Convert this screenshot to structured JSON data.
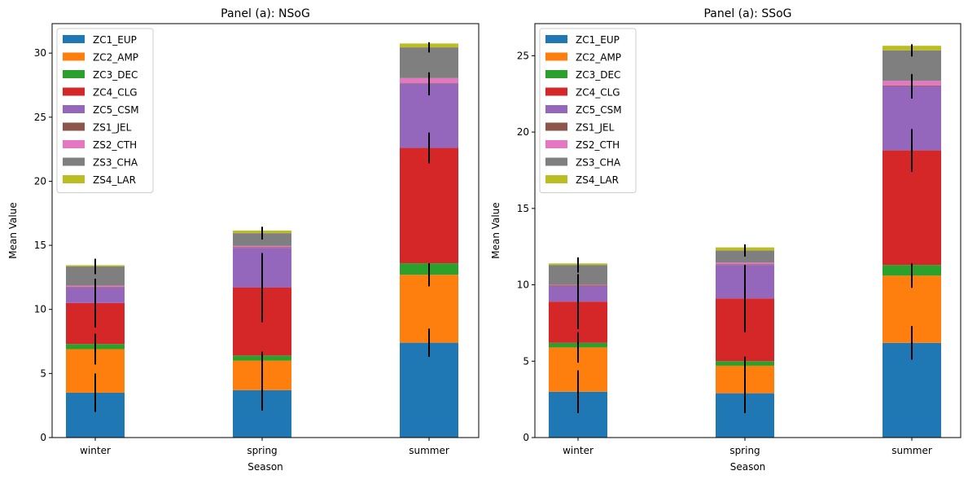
{
  "colors": {
    "ZC1_EUP": "#1f77b4",
    "ZC2_AMP": "#ff7f0e",
    "ZC3_DEC": "#2ca02c",
    "ZC4_CLG": "#d62728",
    "ZC5_CSM": "#9467bd",
    "ZS1_JEL": "#8c564b",
    "ZS2_CTH": "#e377c2",
    "ZS3_CHA": "#7f7f7f",
    "ZS4_LAR": "#bcbd22",
    "errorbar": "#000000"
  },
  "chart_data": [
    {
      "type": "bar",
      "stacked": true,
      "title": "Panel (a): NSoG",
      "xlabel": "Season",
      "ylabel": "Mean Value",
      "ylim": [
        0,
        32.3
      ],
      "yticks": [
        0,
        5,
        10,
        15,
        20,
        25,
        30
      ],
      "categories": [
        "winter",
        "spring",
        "summer"
      ],
      "legend": "top-left",
      "series": [
        {
          "name": "ZC1_EUP",
          "values": [
            3.5,
            3.7,
            7.4
          ],
          "err": [
            1.5,
            1.6,
            1.1
          ]
        },
        {
          "name": "ZC2_AMP",
          "values": [
            3.4,
            2.3,
            5.3
          ],
          "err": [
            1.2,
            0.7,
            0.9
          ]
        },
        {
          "name": "ZC3_DEC",
          "values": [
            0.4,
            0.4,
            0.9
          ],
          "err": [
            0,
            0,
            0
          ]
        },
        {
          "name": "ZC4_CLG",
          "values": [
            3.2,
            5.3,
            9.0
          ],
          "err": [
            1.9,
            2.7,
            1.2
          ]
        },
        {
          "name": "ZC5_CSM",
          "values": [
            1.2,
            3.1,
            5.0
          ],
          "err": [
            0,
            0,
            0.9
          ]
        },
        {
          "name": "ZS1_JEL",
          "values": [
            0.05,
            0.05,
            0.05
          ],
          "err": [
            0,
            0,
            0
          ]
        },
        {
          "name": "ZS2_CTH",
          "values": [
            0.1,
            0.1,
            0.4
          ],
          "err": [
            0,
            0,
            0
          ]
        },
        {
          "name": "ZS3_CHA",
          "values": [
            1.5,
            1.0,
            2.4
          ],
          "err": [
            0.6,
            0.5,
            0.4
          ]
        },
        {
          "name": "ZS4_LAR",
          "values": [
            0.1,
            0.2,
            0.3
          ],
          "err": [
            0,
            0,
            0
          ]
        }
      ]
    },
    {
      "type": "bar",
      "stacked": true,
      "title": "Panel (a): SSoG",
      "xlabel": "Season",
      "ylabel": "Mean Value",
      "ylim": [
        0,
        27.1
      ],
      "yticks": [
        0,
        5,
        10,
        15,
        20,
        25
      ],
      "categories": [
        "winter",
        "spring",
        "summer"
      ],
      "legend": "top-left",
      "series": [
        {
          "name": "ZC1_EUP",
          "values": [
            3.0,
            2.9,
            6.2
          ],
          "err": [
            1.4,
            1.3,
            1.1
          ]
        },
        {
          "name": "ZC2_AMP",
          "values": [
            2.9,
            1.8,
            4.4
          ],
          "err": [
            1.0,
            0.6,
            0.8
          ]
        },
        {
          "name": "ZC3_DEC",
          "values": [
            0.3,
            0.3,
            0.7
          ],
          "err": [
            0,
            0,
            0
          ]
        },
        {
          "name": "ZC4_CLG",
          "values": [
            2.7,
            4.1,
            7.5
          ],
          "err": [
            1.8,
            2.2,
            1.4
          ]
        },
        {
          "name": "ZC5_CSM",
          "values": [
            1.0,
            2.2,
            4.2
          ],
          "err": [
            0,
            0,
            0.8
          ]
        },
        {
          "name": "ZS1_JEL",
          "values": [
            0.05,
            0.05,
            0.05
          ],
          "err": [
            0,
            0,
            0
          ]
        },
        {
          "name": "ZS2_CTH",
          "values": [
            0.05,
            0.1,
            0.3
          ],
          "err": [
            0,
            0,
            0
          ]
        },
        {
          "name": "ZS3_CHA",
          "values": [
            1.3,
            0.8,
            2.0
          ],
          "err": [
            0.5,
            0.4,
            0.4
          ]
        },
        {
          "name": "ZS4_LAR",
          "values": [
            0.1,
            0.2,
            0.3
          ],
          "err": [
            0,
            0,
            0
          ]
        }
      ]
    }
  ]
}
